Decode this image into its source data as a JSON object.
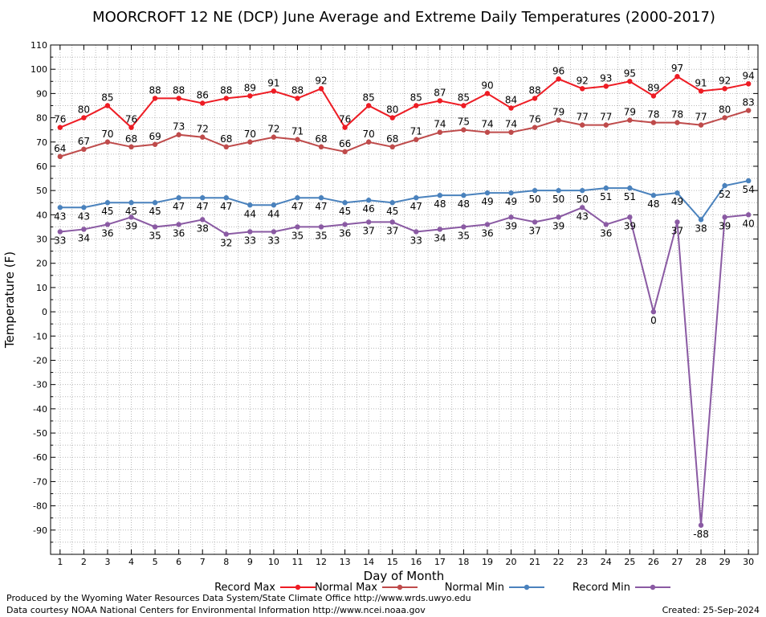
{
  "chart_data": {
    "type": "line",
    "title": "MOORCROFT 12 NE (DCP) June Average and Extreme Daily Temperatures (2000-2017)",
    "xlabel": "Day of Month",
    "ylabel": "Temperature (F)",
    "xlim": [
      0.6,
      30.4
    ],
    "ylim": [
      -100,
      110
    ],
    "x": [
      1,
      2,
      3,
      4,
      5,
      6,
      7,
      8,
      9,
      10,
      11,
      12,
      13,
      14,
      15,
      16,
      17,
      18,
      19,
      20,
      21,
      22,
      23,
      24,
      25,
      26,
      27,
      28,
      29,
      30
    ],
    "x_tick_labels": [
      "1",
      "2",
      "3",
      "4",
      "5",
      "6",
      "7",
      "8",
      "9",
      "10",
      "11",
      "12",
      "13",
      "14",
      "15",
      "16",
      "17",
      "18",
      "19",
      "20",
      "21",
      "22",
      "23",
      "24",
      "25",
      "26",
      "27",
      "28",
      "29",
      "30"
    ],
    "y_ticks": [
      -90,
      -80,
      -70,
      -60,
      -50,
      -40,
      -30,
      -20,
      -10,
      0,
      10,
      20,
      30,
      40,
      50,
      60,
      70,
      80,
      90,
      100,
      110
    ],
    "y_tick_labels": [
      "-90",
      "-80",
      "-70",
      "-60",
      "-50",
      "-40",
      "-30",
      "-20",
      "-10",
      "0",
      "10",
      "20",
      "30",
      "40",
      "50",
      "60",
      "70",
      "80",
      "90",
      "100",
      "110"
    ],
    "grid": true,
    "legend_position": "bottom",
    "series": [
      {
        "name": "Record Max",
        "color": "#ee1c24",
        "values": [
          76,
          80,
          85,
          76,
          88,
          88,
          86,
          88,
          89,
          91,
          88,
          92,
          76,
          85,
          80,
          85,
          87,
          85,
          90,
          84,
          88,
          96,
          92,
          93,
          95,
          89,
          97,
          91,
          92,
          94
        ],
        "labels": [
          "76",
          "80",
          "85",
          "76",
          "88",
          "88",
          "86",
          "88",
          "89",
          "91",
          "88",
          "92",
          "76",
          "85",
          "80",
          "85",
          "87",
          "85",
          "90",
          "84",
          "88",
          "96",
          "92",
          "93",
          "95",
          "89",
          "97",
          "91",
          "92",
          "94"
        ]
      },
      {
        "name": "Normal Max",
        "color": "#bf4b4b",
        "values": [
          64,
          67,
          70,
          68,
          69,
          73,
          72,
          68,
          70,
          72,
          71,
          68,
          66,
          70,
          68,
          71,
          74,
          75,
          74,
          74,
          76,
          79,
          77,
          77,
          79,
          78,
          78,
          77,
          80,
          83
        ],
        "labels": [
          "64",
          "67",
          "70",
          "68",
          "69",
          "73",
          "72",
          "68",
          "70",
          "72",
          "71",
          "68",
          "66",
          "70",
          "68",
          "71",
          "74",
          "75",
          "74",
          "74",
          "76",
          "79",
          "77",
          "77",
          "79",
          "78",
          "78",
          "77",
          "80",
          "83"
        ]
      },
      {
        "name": "Normal Min",
        "color": "#4a82bd",
        "values": [
          43,
          43,
          45,
          45,
          45,
          47,
          47,
          47,
          44,
          44,
          47,
          47,
          45,
          46,
          45,
          47,
          48,
          48,
          49,
          49,
          50,
          50,
          50,
          51,
          51,
          48,
          49,
          38,
          52,
          54
        ],
        "labels": [
          "43",
          "43",
          "45",
          "45",
          "45",
          "47",
          "47",
          "47",
          "44",
          "44",
          "47",
          "47",
          "45",
          "46",
          "45",
          "47",
          "48",
          "48",
          "49",
          "49",
          "50",
          "50",
          "50",
          "51",
          "51",
          "48",
          "49",
          "38",
          "52",
          "54"
        ]
      },
      {
        "name": "Record Min",
        "color": "#8a5aa3",
        "values": [
          33,
          34,
          36,
          39,
          35,
          36,
          38,
          32,
          33,
          33,
          35,
          35,
          36,
          37,
          37,
          33,
          34,
          35,
          36,
          39,
          37,
          39,
          43,
          36,
          39,
          0,
          37,
          -88,
          39,
          40
        ],
        "labels": [
          "33",
          "34",
          "36",
          "39",
          "35",
          "36",
          "38",
          "32",
          "33",
          "33",
          "35",
          "35",
          "36",
          "37",
          "37",
          "33",
          "34",
          "35",
          "36",
          "39",
          "37",
          "39",
          "43",
          "36",
          "39",
          "0",
          "37",
          "-88",
          "39",
          "40"
        ]
      }
    ]
  },
  "footer": {
    "credit_line_1": "Produced by the Wyoming Water Resources Data System/State Climate Office http://www.wrds.uwyo.edu",
    "credit_line_2": "Data courtesy NOAA National Centers for Environmental Information http://www.ncei.noaa.gov",
    "created": "Created:  25-Sep-2024"
  }
}
